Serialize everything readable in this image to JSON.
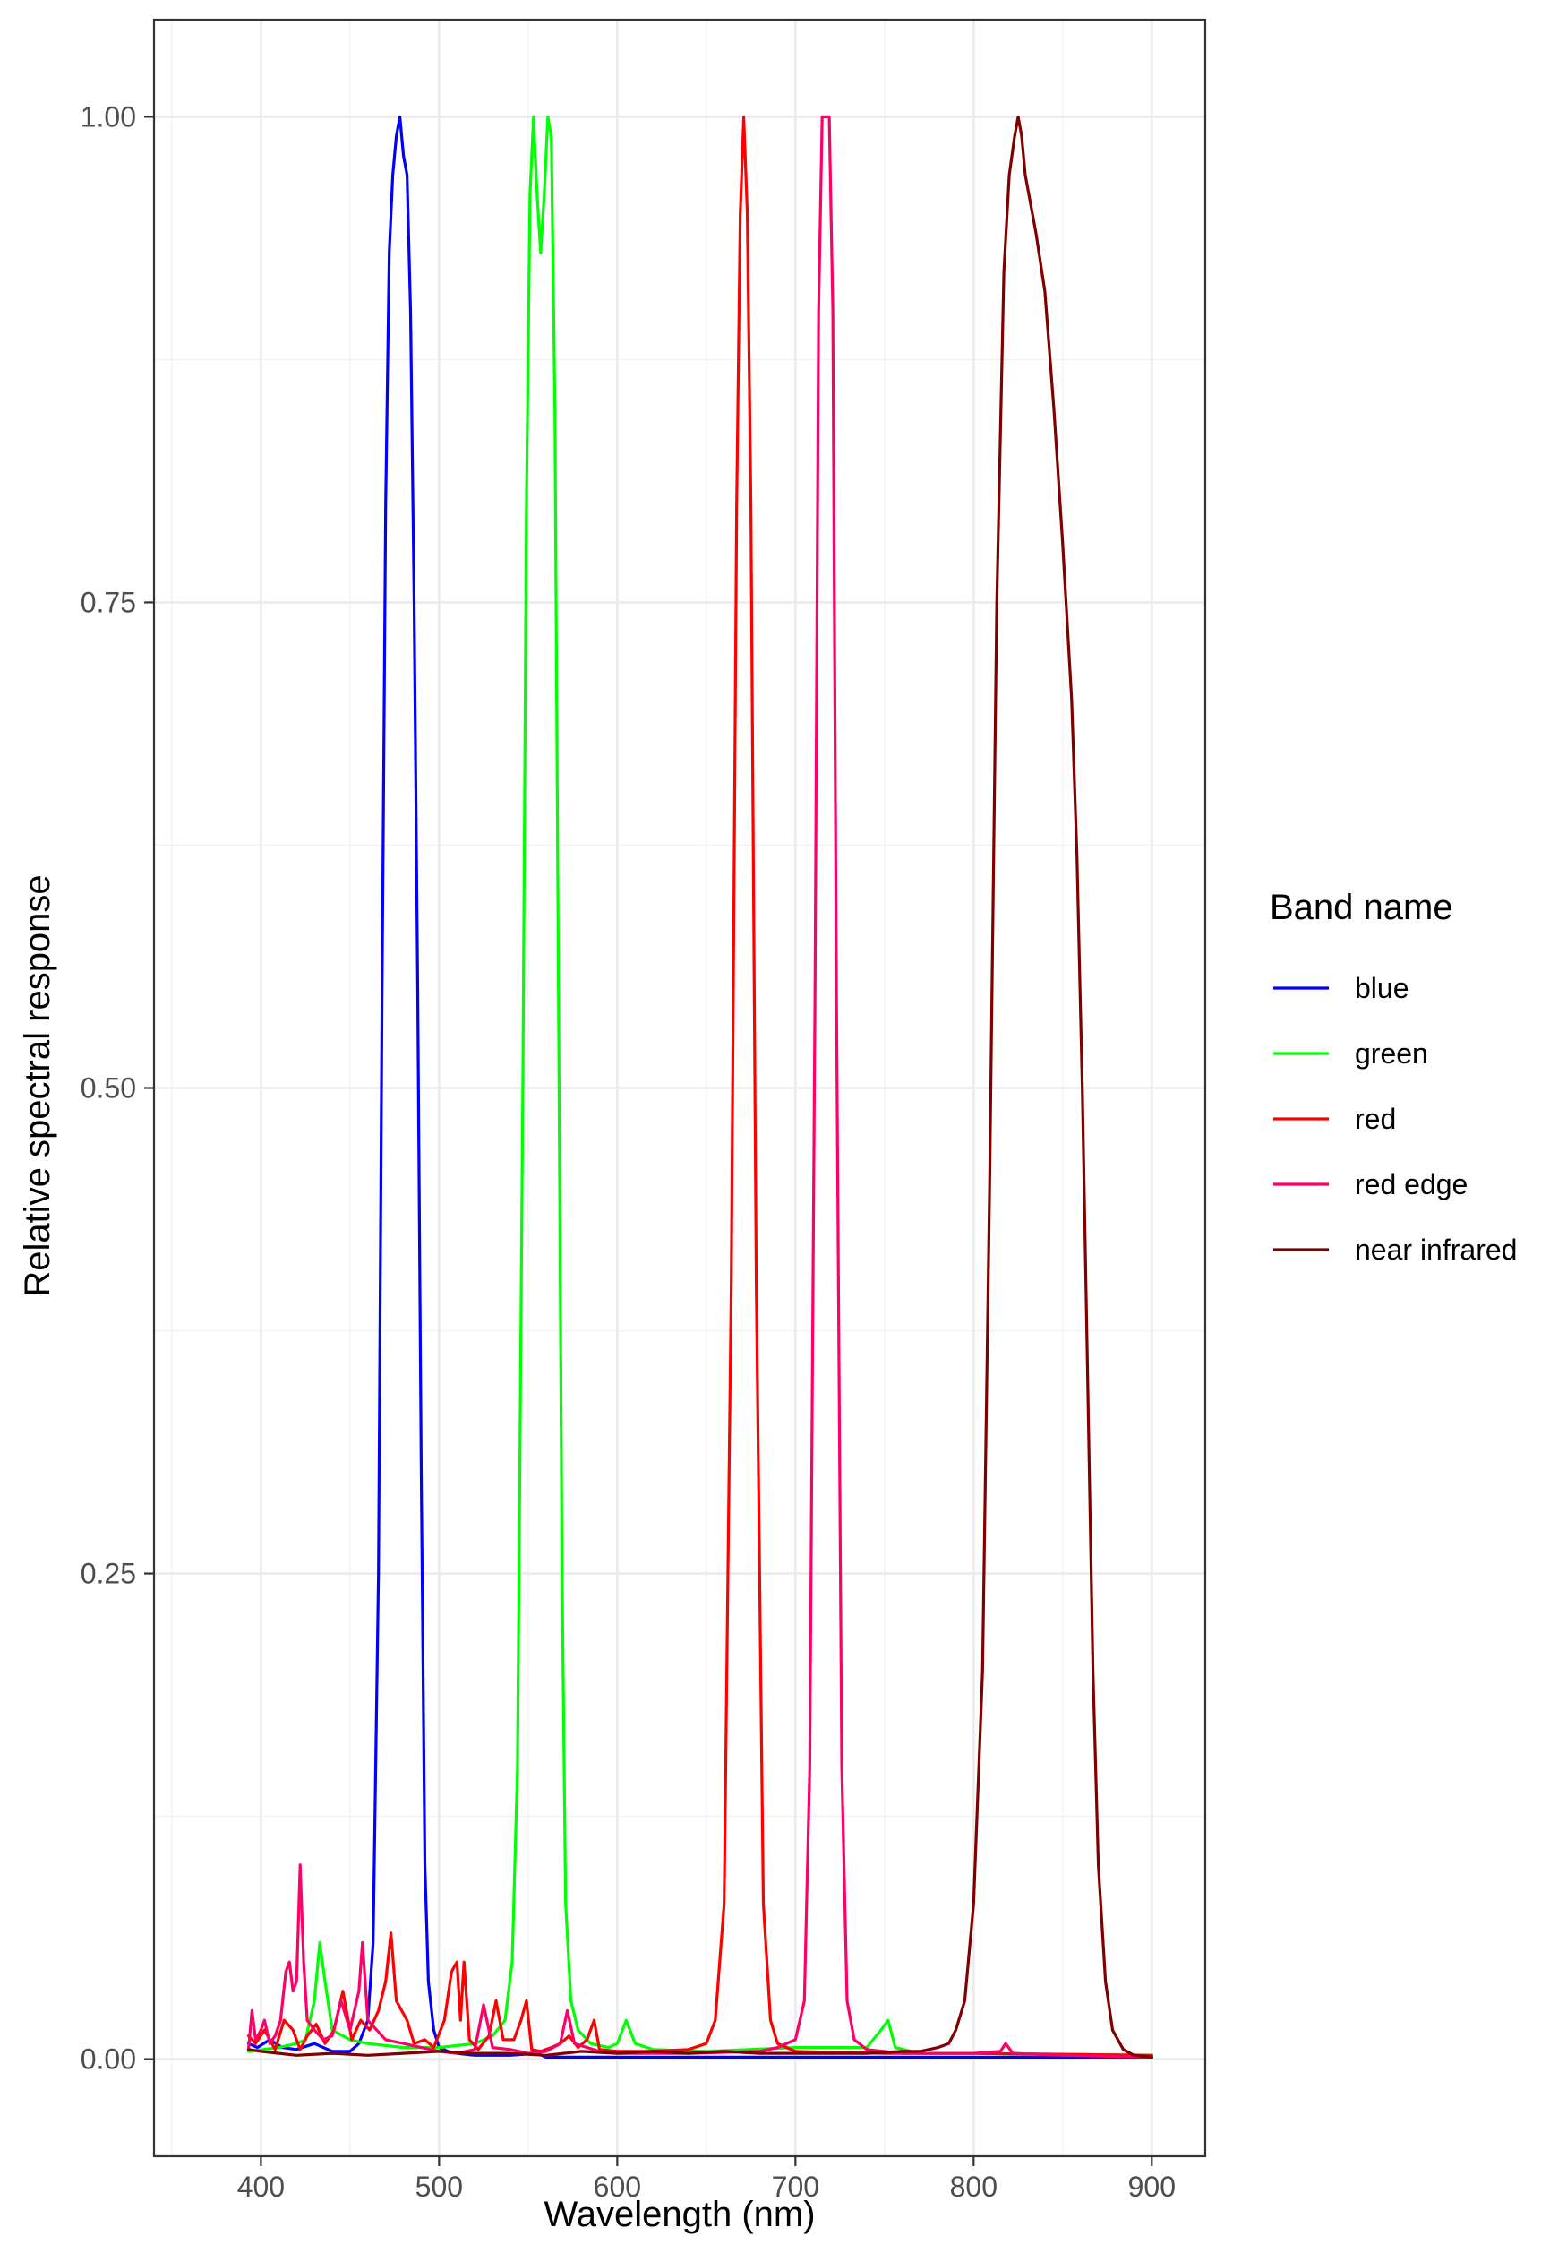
{
  "chart_data": {
    "type": "line",
    "title": "",
    "xlabel": "Wavelength (nm)",
    "ylabel": "Relative spectral response",
    "xlim": [
      340,
      930
    ],
    "ylim": [
      -0.05,
      1.05
    ],
    "x_ticks": [
      400,
      500,
      600,
      700,
      800,
      900
    ],
    "x_tick_labels": [
      "400",
      "500",
      "600",
      "700",
      "800",
      "900"
    ],
    "x_minor_ticks": [
      350,
      450,
      550,
      650,
      750,
      850
    ],
    "y_ticks": [
      0,
      0.25,
      0.5,
      0.75,
      1.0
    ],
    "y_tick_labels": [
      "0.00",
      "0.25",
      "0.50",
      "0.75",
      "1.00"
    ],
    "y_minor_ticks": [
      0.125,
      0.375,
      0.625,
      0.875
    ],
    "grid": true,
    "legend": {
      "title": "Band name",
      "placement": "right"
    },
    "series": [
      {
        "name": "blue",
        "color": "#0000ff",
        "points": [
          [
            393,
            0.008
          ],
          [
            398,
            0.006
          ],
          [
            405,
            0.01
          ],
          [
            412,
            0.006
          ],
          [
            420,
            0.005
          ],
          [
            430,
            0.008
          ],
          [
            440,
            0.004
          ],
          [
            450,
            0.004
          ],
          [
            455,
            0.008
          ],
          [
            460,
            0.02
          ],
          [
            463,
            0.06
          ],
          [
            466,
            0.25
          ],
          [
            468,
            0.55
          ],
          [
            470,
            0.8
          ],
          [
            472,
            0.93
          ],
          [
            474,
            0.97
          ],
          [
            476,
            0.99
          ],
          [
            478,
            1.0
          ],
          [
            480,
            0.98
          ],
          [
            482,
            0.97
          ],
          [
            484,
            0.9
          ],
          [
            486,
            0.75
          ],
          [
            488,
            0.55
          ],
          [
            490,
            0.3
          ],
          [
            492,
            0.1
          ],
          [
            494,
            0.04
          ],
          [
            497,
            0.015
          ],
          [
            500,
            0.006
          ],
          [
            505,
            0.004
          ],
          [
            510,
            0.003
          ],
          [
            520,
            0.002
          ],
          [
            540,
            0.002
          ],
          [
            555,
            0.003
          ],
          [
            560,
            0.001
          ],
          [
            600,
            0.001
          ],
          [
            700,
            0.001
          ],
          [
            800,
            0.001
          ],
          [
            900,
            0.001
          ]
        ]
      },
      {
        "name": "green",
        "color": "#00ff00",
        "points": [
          [
            393,
            0.004
          ],
          [
            410,
            0.006
          ],
          [
            420,
            0.008
          ],
          [
            425,
            0.01
          ],
          [
            430,
            0.03
          ],
          [
            433,
            0.06
          ],
          [
            436,
            0.04
          ],
          [
            440,
            0.015
          ],
          [
            450,
            0.01
          ],
          [
            460,
            0.008
          ],
          [
            480,
            0.006
          ],
          [
            500,
            0.006
          ],
          [
            520,
            0.008
          ],
          [
            530,
            0.012
          ],
          [
            537,
            0.02
          ],
          [
            541,
            0.05
          ],
          [
            544,
            0.15
          ],
          [
            547,
            0.5
          ],
          [
            549,
            0.8
          ],
          [
            551,
            0.96
          ],
          [
            553,
            1.0
          ],
          [
            555,
            0.96
          ],
          [
            557,
            0.93
          ],
          [
            559,
            0.96
          ],
          [
            561,
            1.0
          ],
          [
            563,
            0.99
          ],
          [
            565,
            0.85
          ],
          [
            567,
            0.55
          ],
          [
            569,
            0.25
          ],
          [
            571,
            0.08
          ],
          [
            574,
            0.03
          ],
          [
            578,
            0.015
          ],
          [
            585,
            0.008
          ],
          [
            595,
            0.006
          ],
          [
            600,
            0.008
          ],
          [
            605,
            0.02
          ],
          [
            610,
            0.008
          ],
          [
            620,
            0.005
          ],
          [
            650,
            0.004
          ],
          [
            700,
            0.006
          ],
          [
            740,
            0.006
          ],
          [
            748,
            0.015
          ],
          [
            752,
            0.02
          ],
          [
            756,
            0.006
          ],
          [
            770,
            0.003
          ],
          [
            800,
            0.003
          ],
          [
            900,
            0.002
          ]
        ]
      },
      {
        "name": "red",
        "color": "#ff0000",
        "points": [
          [
            393,
            0.012
          ],
          [
            397,
            0.008
          ],
          [
            402,
            0.015
          ],
          [
            408,
            0.005
          ],
          [
            413,
            0.02
          ],
          [
            418,
            0.015
          ],
          [
            422,
            0.005
          ],
          [
            426,
            0.012
          ],
          [
            431,
            0.018
          ],
          [
            436,
            0.008
          ],
          [
            441,
            0.015
          ],
          [
            446,
            0.035
          ],
          [
            451,
            0.01
          ],
          [
            456,
            0.02
          ],
          [
            461,
            0.015
          ],
          [
            466,
            0.025
          ],
          [
            470,
            0.04
          ],
          [
            473,
            0.065
          ],
          [
            476,
            0.03
          ],
          [
            479,
            0.025
          ],
          [
            482,
            0.02
          ],
          [
            486,
            0.008
          ],
          [
            492,
            0.01
          ],
          [
            497,
            0.006
          ],
          [
            503,
            0.02
          ],
          [
            507,
            0.045
          ],
          [
            510,
            0.05
          ],
          [
            512,
            0.02
          ],
          [
            514,
            0.05
          ],
          [
            517,
            0.01
          ],
          [
            522,
            0.005
          ],
          [
            528,
            0.012
          ],
          [
            532,
            0.03
          ],
          [
            536,
            0.01
          ],
          [
            542,
            0.01
          ],
          [
            546,
            0.02
          ],
          [
            549,
            0.03
          ],
          [
            552,
            0.005
          ],
          [
            557,
            0.004
          ],
          [
            563,
            0.006
          ],
          [
            568,
            0.008
          ],
          [
            573,
            0.012
          ],
          [
            578,
            0.006
          ],
          [
            583,
            0.01
          ],
          [
            587,
            0.02
          ],
          [
            590,
            0.005
          ],
          [
            600,
            0.004
          ],
          [
            620,
            0.004
          ],
          [
            640,
            0.005
          ],
          [
            650,
            0.008
          ],
          [
            655,
            0.02
          ],
          [
            660,
            0.08
          ],
          [
            664,
            0.4
          ],
          [
            667,
            0.8
          ],
          [
            669,
            0.95
          ],
          [
            671,
            1.0
          ],
          [
            673,
            0.95
          ],
          [
            675,
            0.8
          ],
          [
            678,
            0.4
          ],
          [
            682,
            0.08
          ],
          [
            686,
            0.02
          ],
          [
            690,
            0.008
          ],
          [
            700,
            0.004
          ],
          [
            750,
            0.003
          ],
          [
            800,
            0.003
          ],
          [
            900,
            0.002
          ]
        ]
      },
      {
        "name": "red edge",
        "color": "#ff0066",
        "points": [
          [
            393,
            0.005
          ],
          [
            395,
            0.025
          ],
          [
            397,
            0.01
          ],
          [
            400,
            0.015
          ],
          [
            402,
            0.02
          ],
          [
            405,
            0.008
          ],
          [
            408,
            0.012
          ],
          [
            411,
            0.02
          ],
          [
            414,
            0.045
          ],
          [
            416,
            0.05
          ],
          [
            418,
            0.035
          ],
          [
            420,
            0.04
          ],
          [
            422,
            0.1
          ],
          [
            424,
            0.05
          ],
          [
            426,
            0.02
          ],
          [
            430,
            0.015
          ],
          [
            435,
            0.01
          ],
          [
            440,
            0.012
          ],
          [
            445,
            0.03
          ],
          [
            450,
            0.015
          ],
          [
            455,
            0.035
          ],
          [
            457,
            0.06
          ],
          [
            460,
            0.02
          ],
          [
            465,
            0.015
          ],
          [
            470,
            0.01
          ],
          [
            480,
            0.008
          ],
          [
            500,
            0.004
          ],
          [
            510,
            0.003
          ],
          [
            520,
            0.005
          ],
          [
            525,
            0.028
          ],
          [
            530,
            0.006
          ],
          [
            540,
            0.005
          ],
          [
            550,
            0.003
          ],
          [
            560,
            0.004
          ],
          [
            568,
            0.008
          ],
          [
            572,
            0.025
          ],
          [
            576,
            0.008
          ],
          [
            590,
            0.004
          ],
          [
            600,
            0.003
          ],
          [
            640,
            0.003
          ],
          [
            680,
            0.004
          ],
          [
            690,
            0.006
          ],
          [
            700,
            0.01
          ],
          [
            705,
            0.03
          ],
          [
            708,
            0.15
          ],
          [
            711,
            0.55
          ],
          [
            713,
            0.9
          ],
          [
            715,
            1.0
          ],
          [
            717,
            1.0
          ],
          [
            719,
            1.0
          ],
          [
            721,
            0.9
          ],
          [
            723,
            0.55
          ],
          [
            726,
            0.15
          ],
          [
            729,
            0.03
          ],
          [
            733,
            0.01
          ],
          [
            740,
            0.005
          ],
          [
            760,
            0.003
          ],
          [
            800,
            0.003
          ],
          [
            815,
            0.004
          ],
          [
            818,
            0.008
          ],
          [
            822,
            0.003
          ],
          [
            850,
            0.002
          ],
          [
            900,
            0.001
          ]
        ]
      },
      {
        "name": "near infrared",
        "color": "#800000",
        "points": [
          [
            393,
            0.005
          ],
          [
            400,
            0.004
          ],
          [
            410,
            0.003
          ],
          [
            420,
            0.002
          ],
          [
            440,
            0.003
          ],
          [
            460,
            0.002
          ],
          [
            480,
            0.003
          ],
          [
            500,
            0.004
          ],
          [
            520,
            0.003
          ],
          [
            540,
            0.003
          ],
          [
            560,
            0.002
          ],
          [
            580,
            0.004
          ],
          [
            600,
            0.003
          ],
          [
            620,
            0.004
          ],
          [
            640,
            0.003
          ],
          [
            660,
            0.004
          ],
          [
            680,
            0.003
          ],
          [
            700,
            0.003
          ],
          [
            720,
            0.003
          ],
          [
            740,
            0.003
          ],
          [
            760,
            0.004
          ],
          [
            770,
            0.004
          ],
          [
            780,
            0.006
          ],
          [
            786,
            0.008
          ],
          [
            790,
            0.015
          ],
          [
            795,
            0.03
          ],
          [
            800,
            0.08
          ],
          [
            805,
            0.2
          ],
          [
            809,
            0.45
          ],
          [
            813,
            0.75
          ],
          [
            817,
            0.92
          ],
          [
            820,
            0.97
          ],
          [
            823,
            0.99
          ],
          [
            825,
            1.0
          ],
          [
            827,
            0.99
          ],
          [
            829,
            0.97
          ],
          [
            831,
            0.96
          ],
          [
            835,
            0.94
          ],
          [
            840,
            0.91
          ],
          [
            845,
            0.85
          ],
          [
            850,
            0.78
          ],
          [
            855,
            0.7
          ],
          [
            858,
            0.62
          ],
          [
            861,
            0.5
          ],
          [
            864,
            0.35
          ],
          [
            867,
            0.2
          ],
          [
            870,
            0.1
          ],
          [
            874,
            0.04
          ],
          [
            878,
            0.015
          ],
          [
            884,
            0.005
          ],
          [
            890,
            0.002
          ],
          [
            900,
            0.001
          ]
        ]
      }
    ]
  }
}
